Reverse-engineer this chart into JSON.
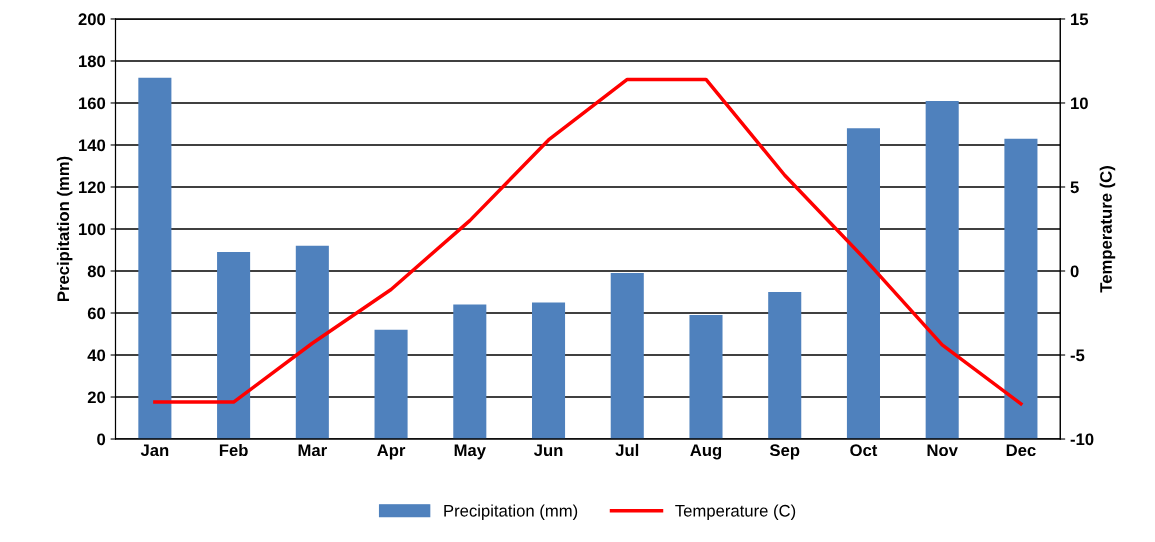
{
  "chart_data": {
    "type": "bar",
    "categories": [
      "Jan",
      "Feb",
      "Mar",
      "Apr",
      "May",
      "Jun",
      "Jul",
      "Aug",
      "Sep",
      "Oct",
      "Nov",
      "Dec"
    ],
    "series": [
      {
        "name": "Precipitation (mm)",
        "color": "#4f81bd",
        "values": [
          172,
          89,
          92,
          52,
          64,
          65,
          79,
          59,
          70,
          148,
          161,
          143
        ]
      },
      {
        "name": "Temperature (C)",
        "type": "line",
        "axis": "y2",
        "color": "#ff0000",
        "values": [
          -7.8,
          -7.8,
          -4.3,
          -1.1,
          3.0,
          7.8,
          11.4,
          11.4,
          5.7,
          0.8,
          -4.4,
          -7.9
        ]
      }
    ],
    "ylabel": "Precipitation (mm)",
    "y2label": "Temperature (C)",
    "ylim": [
      0,
      200
    ],
    "yticks": [
      0,
      20,
      40,
      60,
      80,
      100,
      120,
      140,
      160,
      180,
      200
    ],
    "y2lim": [
      -10,
      15
    ],
    "y2ticks": [
      -10,
      -5,
      0,
      5,
      10,
      15
    ],
    "grid": "y",
    "legend": "bottom",
    "marker": "none",
    "line_style": "solid"
  }
}
